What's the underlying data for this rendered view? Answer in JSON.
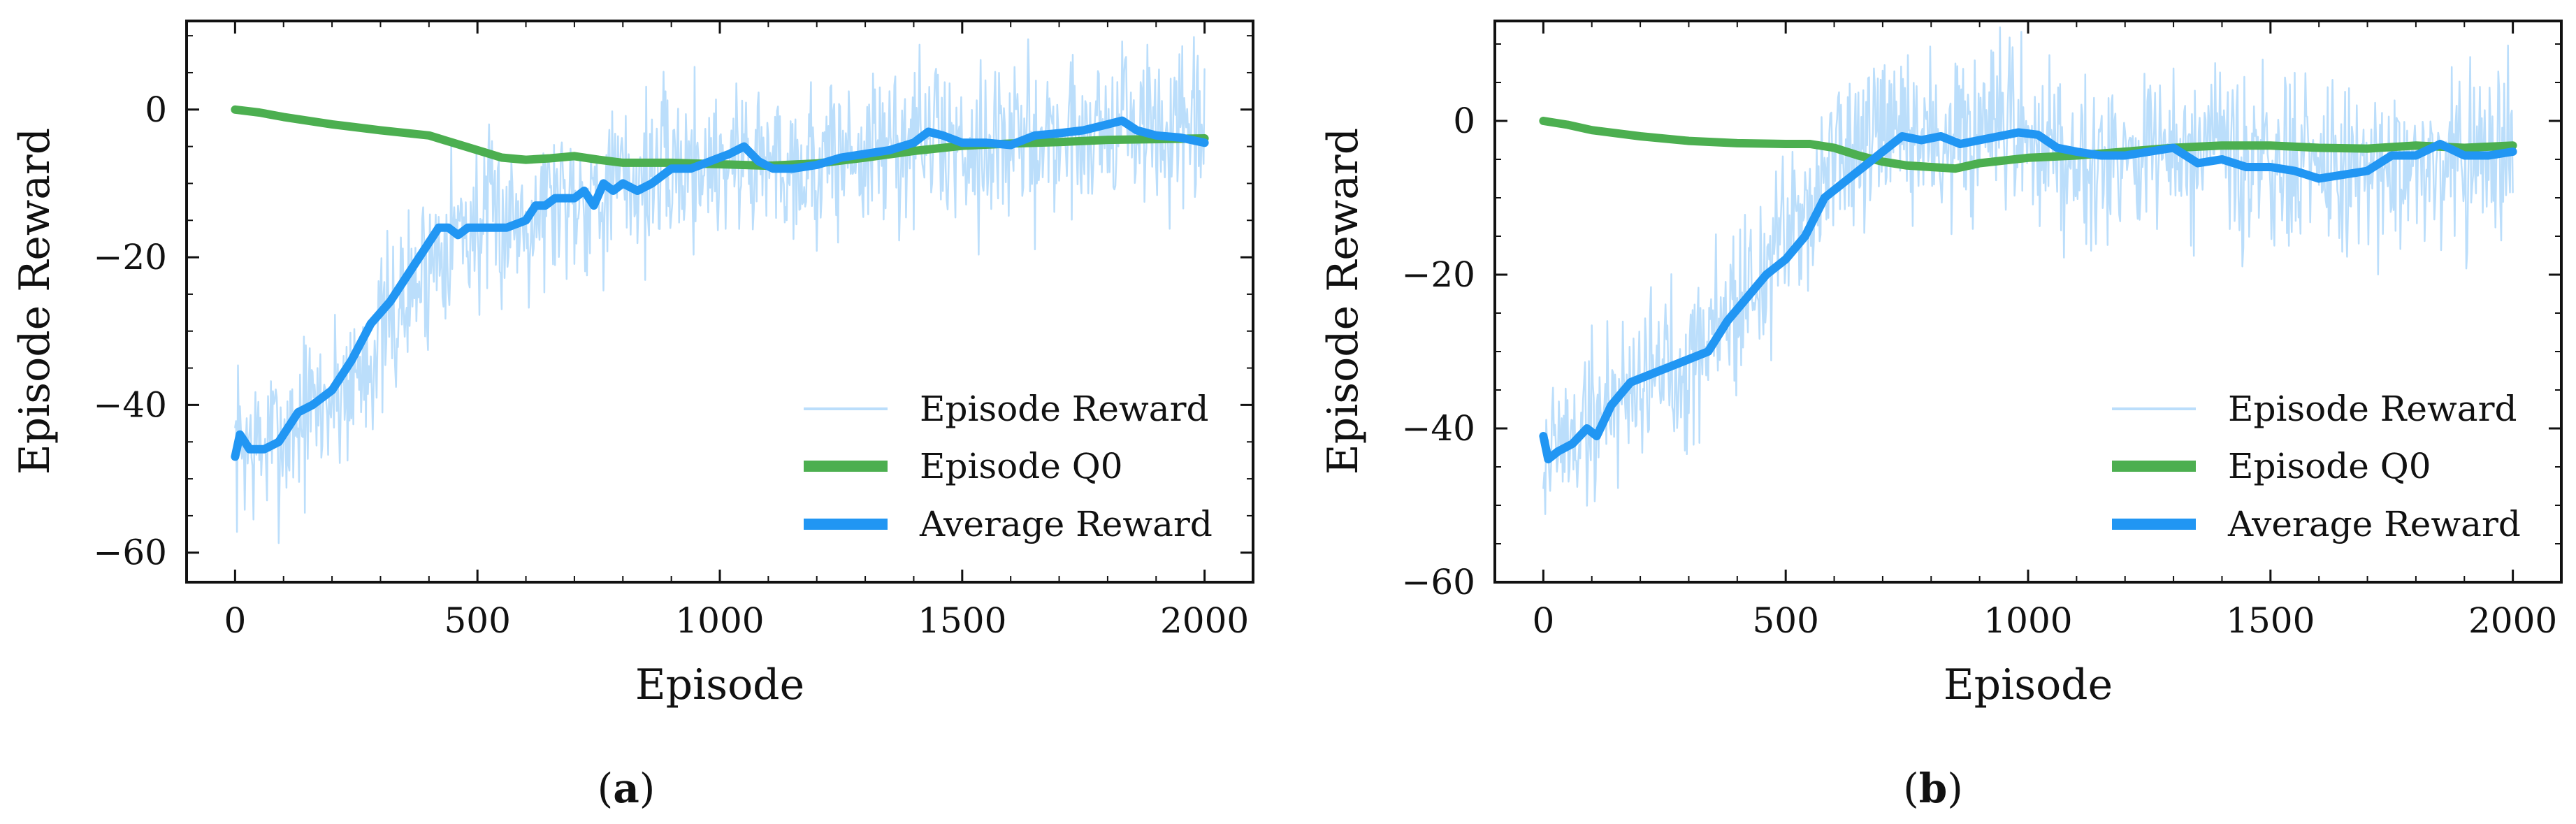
{
  "chart_data": [
    {
      "type": "line",
      "panel": "a",
      "xlabel": "Episode",
      "ylabel": "Episode Reward",
      "xlim": [
        -100,
        2100
      ],
      "ylim": [
        -64,
        12
      ],
      "xticks": [
        0,
        500,
        1000,
        1500,
        2000
      ],
      "yticks": [
        0,
        -20,
        -40,
        -60
      ],
      "legend_position": "lower-right",
      "series": [
        {
          "name": "Episode Reward",
          "color": "#BBDEFB",
          "noise_amplitude": 8,
          "x": [
            0,
            20,
            50,
            100,
            150,
            200,
            250,
            300,
            350,
            400,
            430,
            450,
            500,
            550,
            600,
            650,
            700,
            750,
            800,
            850,
            900,
            950,
            1000,
            1050,
            1100,
            1150,
            1200,
            1250,
            1300,
            1350,
            1400,
            1450,
            1500,
            1550,
            1600,
            1650,
            1700,
            1750,
            1800,
            1850,
            1900,
            1950,
            2000
          ],
          "y": [
            -46,
            -45,
            -46,
            -44,
            -41,
            -39,
            -36,
            -31,
            -26,
            -21,
            -17,
            -16,
            -16,
            -15,
            -14,
            -12,
            -11,
            -11,
            -10,
            -9,
            -8,
            -7,
            -7,
            -6,
            -7,
            -7,
            -8,
            -6,
            -6,
            -5,
            -4,
            -4,
            -5,
            -4,
            -5,
            -4,
            -4,
            -3,
            -2,
            -2,
            -3,
            -4,
            -4
          ]
        },
        {
          "name": "Episode Q0",
          "color": "#4CAF50",
          "x": [
            0,
            50,
            100,
            200,
            300,
            400,
            500,
            550,
            600,
            650,
            700,
            750,
            800,
            900,
            1000,
            1100,
            1200,
            1300,
            1400,
            1500,
            1600,
            1700,
            1800,
            1900,
            2000
          ],
          "y": [
            0,
            -0.4,
            -1,
            -2,
            -2.8,
            -3.5,
            -5.5,
            -6.5,
            -6.8,
            -6.6,
            -6.3,
            -6.8,
            -7.2,
            -7.2,
            -7.4,
            -7.6,
            -7.3,
            -6.5,
            -5.6,
            -4.9,
            -4.6,
            -4.4,
            -4.1,
            -4.0,
            -3.9
          ]
        },
        {
          "name": "Average Reward",
          "color": "#2196F3",
          "x": [
            0,
            10,
            30,
            60,
            90,
            110,
            130,
            160,
            200,
            240,
            280,
            320,
            360,
            400,
            420,
            440,
            460,
            480,
            500,
            530,
            560,
            600,
            620,
            640,
            660,
            700,
            720,
            740,
            760,
            780,
            800,
            830,
            860,
            900,
            940,
            980,
            1020,
            1050,
            1080,
            1110,
            1150,
            1200,
            1250,
            1300,
            1350,
            1400,
            1430,
            1460,
            1500,
            1550,
            1600,
            1650,
            1700,
            1750,
            1800,
            1830,
            1860,
            1900,
            1950,
            2000
          ],
          "y": [
            -47,
            -44,
            -46,
            -46,
            -45,
            -43,
            -41,
            -40,
            -38,
            -34,
            -29,
            -26,
            -22,
            -18,
            -16,
            -16,
            -17,
            -16,
            -16,
            -16,
            -16,
            -15,
            -13,
            -13,
            -12,
            -12,
            -11,
            -13,
            -10,
            -11,
            -10,
            -11,
            -10,
            -8,
            -8,
            -7,
            -6,
            -5,
            -7,
            -8,
            -8,
            -7.5,
            -6.5,
            -6.0,
            -5.5,
            -4.5,
            -3.0,
            -3.5,
            -4.5,
            -4.5,
            -4.8,
            -3.5,
            -3.2,
            -2.8,
            -2.0,
            -1.5,
            -2.8,
            -3.5,
            -3.8,
            -4.5
          ]
        }
      ]
    },
    {
      "type": "line",
      "panel": "b",
      "xlabel": "Episode",
      "ylabel": "Episode Reward",
      "xlim": [
        -100,
        2100
      ],
      "ylim": [
        -60,
        13
      ],
      "xticks": [
        0,
        500,
        1000,
        1500,
        2000
      ],
      "yticks": [
        0,
        -20,
        -40,
        -60
      ],
      "legend_position": "lower-right",
      "series": [
        {
          "name": "Episode Reward",
          "color": "#BBDEFB",
          "noise_amplitude": 8,
          "x": [
            0,
            20,
            50,
            100,
            150,
            200,
            250,
            300,
            350,
            400,
            450,
            500,
            550,
            600,
            650,
            700,
            750,
            800,
            850,
            900,
            950,
            1000,
            1050,
            1100,
            1150,
            1200,
            1250,
            1300,
            1350,
            1400,
            1450,
            1500,
            1550,
            1600,
            1650,
            1700,
            1750,
            1800,
            1850,
            1900,
            1950,
            2000
          ],
          "y": [
            -43,
            -42,
            -42,
            -39,
            -36,
            -33,
            -32,
            -31,
            -27,
            -24,
            -20,
            -16,
            -10,
            -5,
            -4,
            -3,
            -2,
            -2,
            -3,
            -3,
            -2,
            -2,
            -3,
            -4,
            -4,
            -4,
            -4,
            -5,
            -5,
            -5,
            -6,
            -6,
            -6,
            -7,
            -7,
            -6,
            -6,
            -5,
            -5,
            -5,
            -4,
            -4
          ]
        },
        {
          "name": "Episode Q0",
          "color": "#4CAF50",
          "x": [
            0,
            50,
            100,
            200,
            300,
            400,
            500,
            550,
            600,
            650,
            700,
            750,
            800,
            850,
            900,
            1000,
            1100,
            1200,
            1300,
            1400,
            1500,
            1600,
            1700,
            1800,
            1900,
            2000
          ],
          "y": [
            0,
            -0.5,
            -1.2,
            -2,
            -2.6,
            -2.9,
            -3.0,
            -3.0,
            -3.5,
            -4.5,
            -5.3,
            -5.8,
            -6.0,
            -6.2,
            -5.5,
            -4.8,
            -4.5,
            -4.0,
            -3.5,
            -3.2,
            -3.2,
            -3.5,
            -3.6,
            -3.2,
            -3.5,
            -3.2
          ]
        },
        {
          "name": "Average Reward",
          "color": "#2196F3",
          "x": [
            0,
            10,
            30,
            60,
            90,
            110,
            140,
            180,
            220,
            260,
            300,
            340,
            380,
            420,
            460,
            500,
            540,
            580,
            620,
            660,
            700,
            740,
            780,
            820,
            860,
            900,
            940,
            980,
            1020,
            1060,
            1100,
            1150,
            1200,
            1250,
            1300,
            1350,
            1400,
            1450,
            1500,
            1550,
            1600,
            1650,
            1700,
            1750,
            1800,
            1850,
            1900,
            1950,
            2000
          ],
          "y": [
            -41,
            -44,
            -43,
            -42,
            -40,
            -41,
            -37,
            -34,
            -33,
            -32,
            -31,
            -30,
            -26,
            -23,
            -20,
            -18,
            -15,
            -10,
            -8,
            -6,
            -4,
            -2,
            -2.5,
            -2.0,
            -3.0,
            -2.5,
            -2.0,
            -1.5,
            -1.8,
            -3.5,
            -4.0,
            -4.5,
            -4.5,
            -4.0,
            -3.5,
            -5.5,
            -5.0,
            -6.0,
            -6.0,
            -6.5,
            -7.5,
            -7.0,
            -6.5,
            -4.5,
            -4.5,
            -3.0,
            -4.5,
            -4.5,
            -4.0
          ]
        }
      ]
    }
  ],
  "captions": [
    {
      "open": "(",
      "letter": "a",
      "close": ")"
    },
    {
      "open": "(",
      "letter": "b",
      "close": ")"
    }
  ]
}
